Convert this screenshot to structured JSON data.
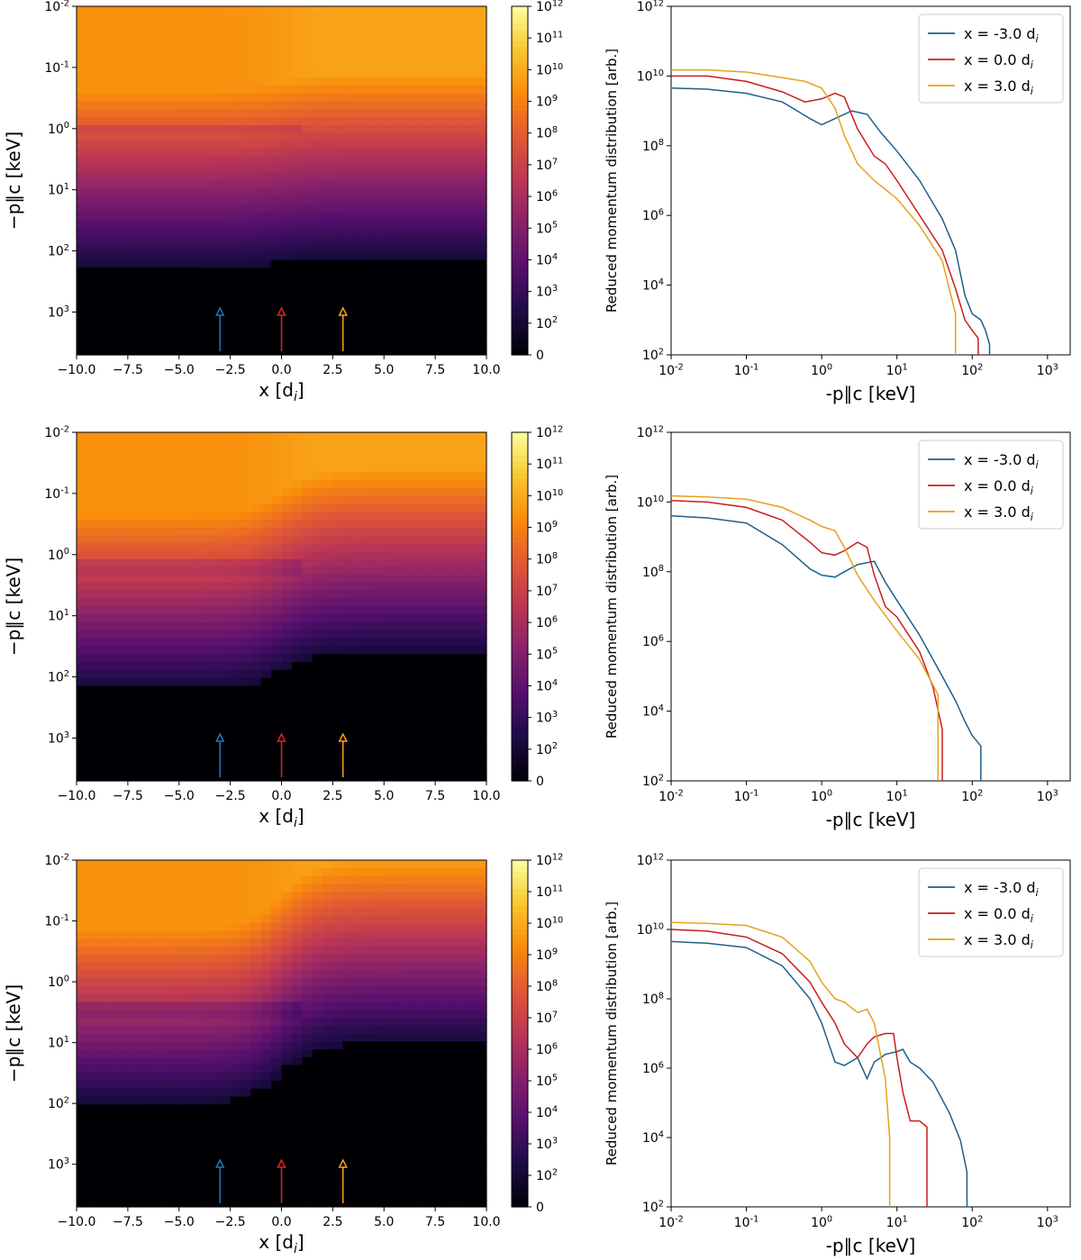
{
  "chart_data": [
    {
      "type": "heatmap",
      "panel": "heatmap-1",
      "xlabel": "x [d_i]",
      "ylabel": "−p∥c [keV]",
      "xlim": [
        -10,
        10
      ],
      "ylim_log10": [
        -2,
        3.7
      ],
      "y_inverted": true,
      "x_ticks": [
        "−10.0",
        "−7.5",
        "−5.0",
        "−2.5",
        "0.0",
        "2.5",
        "5.0",
        "7.5",
        "10.0"
      ],
      "y_ticks": [
        "10^-2",
        "10^-1",
        "10^0",
        "10^1",
        "10^2",
        "10^3"
      ],
      "colorbar": {
        "ticks": [
          "0",
          "10^2",
          "10^3",
          "10^4",
          "10^5",
          "10^6",
          "10^7",
          "10^8",
          "10^9",
          "10^10",
          "10^11",
          "10^12"
        ]
      },
      "arrows": [
        {
          "x": -3.0,
          "color": "#1f77b4"
        },
        {
          "x": 0.0,
          "color": "#d62728"
        },
        {
          "x": 3.0,
          "color": "#ff9f1c"
        }
      ],
      "features": {
        "cutoff_left": 180,
        "cutoff_right": 130,
        "ring": 1.0
      }
    },
    {
      "type": "line",
      "panel": "lines-1",
      "xlabel": "-p∥c [keV]",
      "ylabel": "Reduced momentum distribution [arb.]",
      "xscale": "log",
      "yscale": "log",
      "xlim": [
        0.01,
        2000
      ],
      "ylim": [
        100,
        1000000000000.0
      ],
      "x_ticks": [
        "10^-2",
        "10^-1",
        "10^0",
        "10^1",
        "10^2",
        "10^3"
      ],
      "y_ticks": [
        "10^2",
        "10^4",
        "10^6",
        "10^8",
        "10^10",
        "10^12"
      ],
      "legend_loc": "upper right",
      "series": [
        {
          "name": "x = -3.0 d_i",
          "color": "#1f5f8b",
          "x": [
            0.01,
            0.03,
            0.1,
            0.3,
            0.7,
            1.0,
            1.5,
            2.5,
            4,
            6,
            10,
            20,
            40,
            60,
            80,
            100,
            130,
            150,
            170,
            170
          ],
          "y": [
            4500000000.0,
            4200000000.0,
            3200000000.0,
            1800000000.0,
            600000000.0,
            400000000.0,
            600000000.0,
            1000000000.0,
            800000000.0,
            250000000.0,
            70000000.0,
            10000000.0,
            800000.0,
            100000.0,
            5000.0,
            1500.0,
            1000.0,
            500,
            200,
            100
          ]
        },
        {
          "name": "x = 0.0 d_i",
          "color": "#c81e1e",
          "x": [
            0.01,
            0.03,
            0.1,
            0.3,
            0.6,
            1.0,
            1.5,
            2.0,
            3.0,
            5,
            7,
            10,
            20,
            40,
            60,
            80,
            100,
            120,
            120
          ],
          "y": [
            10000000000.0,
            10000000000.0,
            7000000000.0,
            3500000000.0,
            1800000000.0,
            2200000000.0,
            3200000000.0,
            2500000000.0,
            300000000.0,
            50000000.0,
            30000000.0,
            10000000.0,
            1000000.0,
            100000.0,
            8000.0,
            1000.0,
            500,
            300,
            100
          ]
        },
        {
          "name": "x = 3.0 d_i",
          "color": "#e6a11a",
          "x": [
            0.01,
            0.03,
            0.1,
            0.3,
            0.6,
            1.0,
            1.5,
            2.0,
            3.0,
            5,
            10,
            20,
            40,
            60,
            60
          ],
          "y": [
            15000000000.0,
            15000000000.0,
            13000000000.0,
            9000000000.0,
            7000000000.0,
            4500000000.0,
            1200000000.0,
            200000000.0,
            30000000.0,
            10000000.0,
            3000000.0,
            500000.0,
            50000.0,
            1500.0,
            100
          ]
        }
      ]
    },
    {
      "type": "heatmap",
      "panel": "heatmap-2",
      "xlabel": "x [d_i]",
      "ylabel": "−p∥c [keV]",
      "xlim": [
        -10,
        10
      ],
      "ylim_log10": [
        -2,
        3.7
      ],
      "y_inverted": true,
      "x_ticks": [
        "−10.0",
        "−7.5",
        "−5.0",
        "−2.5",
        "0.0",
        "2.5",
        "5.0",
        "7.5",
        "10.0"
      ],
      "y_ticks": [
        "10^-2",
        "10^-1",
        "10^0",
        "10^1",
        "10^2",
        "10^3"
      ],
      "colorbar": {
        "ticks": [
          "0",
          "10^2",
          "10^3",
          "10^4",
          "10^5",
          "10^6",
          "10^7",
          "10^8",
          "10^9",
          "10^10",
          "10^11",
          "10^12"
        ]
      },
      "arrows": [
        {
          "x": -3.0,
          "color": "#1f77b4"
        },
        {
          "x": 0.0,
          "color": "#d62728"
        },
        {
          "x": 3.0,
          "color": "#ff9f1c"
        }
      ],
      "features": {
        "cutoff_left": 160,
        "cutoff_right": 40,
        "ring": 1.6
      }
    },
    {
      "type": "line",
      "panel": "lines-2",
      "xlabel": "-p∥c [keV]",
      "ylabel": "Reduced momentum distribution [arb.]",
      "xscale": "log",
      "yscale": "log",
      "xlim": [
        0.01,
        2000
      ],
      "ylim": [
        100,
        1000000000000.0
      ],
      "x_ticks": [
        "10^-2",
        "10^-1",
        "10^0",
        "10^1",
        "10^2",
        "10^3"
      ],
      "y_ticks": [
        "10^2",
        "10^4",
        "10^6",
        "10^8",
        "10^10",
        "10^12"
      ],
      "legend_loc": "upper right",
      "series": [
        {
          "name": "x = -3.0 d_i",
          "color": "#1f5f8b",
          "x": [
            0.01,
            0.03,
            0.1,
            0.3,
            0.7,
            1.0,
            1.5,
            2.0,
            3.0,
            5,
            7,
            10,
            20,
            40,
            60,
            80,
            100,
            130,
            130
          ],
          "y": [
            4000000000.0,
            3500000000.0,
            2500000000.0,
            600000000.0,
            120000000.0,
            80000000.0,
            70000000.0,
            100000000.0,
            160000000.0,
            200000000.0,
            50000000.0,
            15000000.0,
            1500000.0,
            100000.0,
            20000.0,
            5000.0,
            2000.0,
            1000.0,
            100
          ]
        },
        {
          "name": "x = 0.0 d_i",
          "color": "#c81e1e",
          "x": [
            0.01,
            0.03,
            0.1,
            0.3,
            0.7,
            1.0,
            1.5,
            2.0,
            3.0,
            4,
            5,
            7,
            10,
            20,
            30,
            40,
            40
          ],
          "y": [
            11000000000.0,
            10000000000.0,
            7000000000.0,
            3000000000.0,
            700000000.0,
            350000000.0,
            300000000.0,
            400000000.0,
            700000000.0,
            500000000.0,
            80000000.0,
            10000000.0,
            5000000.0,
            500000.0,
            50000.0,
            3000.0,
            100
          ]
        },
        {
          "name": "x = 3.0 d_i",
          "color": "#e6a11a",
          "x": [
            0.01,
            0.03,
            0.1,
            0.3,
            0.7,
            1.0,
            1.5,
            2.0,
            3.0,
            5,
            10,
            20,
            35,
            35
          ],
          "y": [
            15000000000.0,
            14000000000.0,
            12000000000.0,
            7000000000.0,
            3000000000.0,
            2000000000.0,
            1500000000.0,
            500000000.0,
            80000000.0,
            15000000.0,
            2000000.0,
            300000.0,
            30000.0,
            100
          ]
        }
      ]
    },
    {
      "type": "heatmap",
      "panel": "heatmap-3",
      "xlabel": "x [d_i]",
      "ylabel": "−p∥c [keV]",
      "xlim": [
        -10,
        10
      ],
      "ylim_log10": [
        -2,
        3.7
      ],
      "y_inverted": true,
      "x_ticks": [
        "−10.0",
        "−7.5",
        "−5.0",
        "−2.5",
        "0.0",
        "2.5",
        "5.0",
        "7.5",
        "10.0"
      ],
      "y_ticks": [
        "10^-2",
        "10^-1",
        "10^0",
        "10^1",
        "10^2",
        "10^3"
      ],
      "colorbar": {
        "ticks": [
          "0",
          "10^2",
          "10^3",
          "10^4",
          "10^5",
          "10^6",
          "10^7",
          "10^8",
          "10^9",
          "10^10",
          "10^11",
          "10^12"
        ]
      },
      "arrows": [
        {
          "x": -3.0,
          "color": "#1f77b4"
        },
        {
          "x": 0.0,
          "color": "#d62728"
        },
        {
          "x": 3.0,
          "color": "#ff9f1c"
        }
      ],
      "features": {
        "cutoff_left": 100,
        "cutoff_right": 10,
        "ring": 3.0
      }
    },
    {
      "type": "line",
      "panel": "lines-3",
      "xlabel": "-p∥c [keV]",
      "ylabel": "Reduced momentum distribution [arb.]",
      "xscale": "log",
      "yscale": "log",
      "xlim": [
        0.01,
        2000
      ],
      "ylim": [
        100,
        1000000000000.0
      ],
      "x_ticks": [
        "10^-2",
        "10^-1",
        "10^0",
        "10^1",
        "10^2",
        "10^3"
      ],
      "y_ticks": [
        "10^2",
        "10^4",
        "10^6",
        "10^8",
        "10^10",
        "10^12"
      ],
      "legend_loc": "upper right",
      "series": [
        {
          "name": "x = -3.0 d_i",
          "color": "#1f5f8b",
          "x": [
            0.01,
            0.03,
            0.1,
            0.3,
            0.7,
            1.0,
            1.5,
            2.0,
            3.0,
            4,
            5,
            7,
            10,
            12,
            15,
            20,
            30,
            50,
            70,
            85,
            85
          ],
          "y": [
            4500000000.0,
            4000000000.0,
            3000000000.0,
            900000000.0,
            100000000.0,
            20000000.0,
            1500000.0,
            1200000.0,
            2000000.0,
            500000.0,
            1500000.0,
            2500000.0,
            3000000.0,
            3500000.0,
            1500000.0,
            1000000.0,
            400000.0,
            50000.0,
            8000.0,
            1000.0,
            100
          ]
        },
        {
          "name": "x = 0.0 d_i",
          "color": "#c81e1e",
          "x": [
            0.01,
            0.03,
            0.1,
            0.3,
            0.7,
            1.0,
            1.5,
            2.0,
            3.0,
            4,
            5,
            7,
            9,
            10,
            12,
            15,
            20,
            25,
            25
          ],
          "y": [
            10000000000.0,
            9000000000.0,
            6000000000.0,
            2000000000.0,
            300000000.0,
            80000000.0,
            20000000.0,
            5000000.0,
            2000000.0,
            5000000.0,
            8000000.0,
            10000000.0,
            10000000.0,
            2000000.0,
            200000.0,
            30000.0,
            30000.0,
            20000.0,
            100
          ]
        },
        {
          "name": "x = 3.0 d_i",
          "color": "#e6a11a",
          "x": [
            0.01,
            0.03,
            0.1,
            0.3,
            0.7,
            1.0,
            1.5,
            2.0,
            3.0,
            4,
            5,
            7,
            8,
            8
          ],
          "y": [
            16000000000.0,
            15000000000.0,
            13000000000.0,
            6000000000.0,
            1200000000.0,
            300000000.0,
            100000000.0,
            80000000.0,
            40000000.0,
            50000000.0,
            20000000.0,
            500000.0,
            10000.0,
            100
          ]
        }
      ]
    }
  ]
}
